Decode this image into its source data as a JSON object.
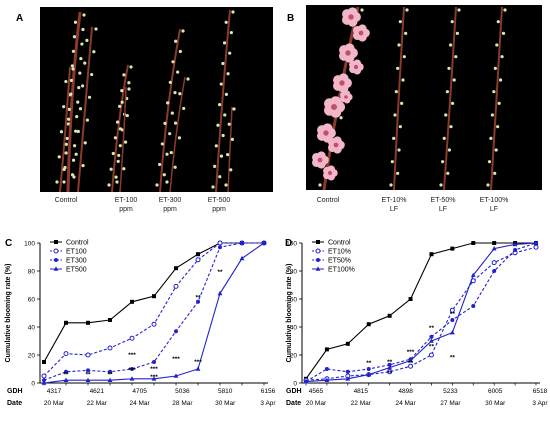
{
  "panels": {
    "a_label": "A",
    "b_label": "B",
    "c_label": "C",
    "d_label": "D"
  },
  "photo_a": {
    "captions": [
      "Control",
      "ET-100\nppm",
      "ET-300\nppm",
      "ET-500\nppm"
    ]
  },
  "photo_b": {
    "captions": [
      "Control",
      "ET-10%\nLF",
      "ET-50%\nLF",
      "ET-100%\nLF"
    ]
  },
  "colors": {
    "control": "#000000",
    "treat": "#2222cc",
    "photo_bg": "#000000",
    "branch": "#8b3a2a",
    "bud": "#d8e8b0",
    "blossom": "#f3b6c8"
  },
  "chart_data": [
    {
      "type": "line",
      "panel": "C",
      "ylabel": "Cumulative blooming rate (%)",
      "ylim": [
        0,
        100
      ],
      "yticks": [
        0,
        20,
        40,
        60,
        80,
        100
      ],
      "gdh_label": "GDH",
      "date_label": "Date",
      "gdh_ticks": [
        "4317",
        "4621",
        "4705",
        "5036",
        "5810",
        "6156"
      ],
      "date_ticks": [
        "20 Mar",
        "22 Mar",
        "24 Mar",
        "28 Mar",
        "30 Mar",
        "3 Apr"
      ],
      "legend_position": "top-left",
      "series": [
        {
          "name": "Control",
          "marker": "square-filled",
          "dash": "solid",
          "values": [
            15,
            43,
            43,
            45,
            58,
            62,
            82,
            92,
            100,
            100,
            100
          ]
        },
        {
          "name": "ET100",
          "marker": "circle-open",
          "dash": "dashed",
          "values": [
            5,
            21,
            20,
            25,
            32,
            42,
            69,
            88,
            100,
            100,
            100
          ]
        },
        {
          "name": "ET300",
          "marker": "circle-filled",
          "dash": "dashed",
          "values": [
            2,
            8,
            9,
            8,
            10,
            15,
            37,
            58,
            97,
            100,
            100
          ]
        },
        {
          "name": "ET500",
          "marker": "triangle-filled",
          "dash": "solid",
          "values": [
            0,
            2,
            2,
            2,
            3,
            3,
            5,
            10,
            64,
            89,
            100
          ]
        }
      ],
      "annotations": [
        {
          "x_index": 1,
          "y": 4,
          "text": "**"
        },
        {
          "x_index": 2,
          "y": 4,
          "text": "**"
        },
        {
          "x_index": 3,
          "y": 4,
          "text": "**"
        },
        {
          "x_index": 4,
          "y": 18,
          "text": "***"
        },
        {
          "x_index": 4,
          "y": 7,
          "text": "***"
        },
        {
          "x_index": 5,
          "y": 8,
          "text": "***"
        },
        {
          "x_index": 5,
          "y": 2,
          "text": "***"
        },
        {
          "x_index": 6,
          "y": 15,
          "text": "***"
        },
        {
          "x_index": 7,
          "y": 13,
          "text": "***"
        },
        {
          "x_index": 7,
          "y": 59,
          "text": "**"
        },
        {
          "x_index": 8,
          "y": 77,
          "text": "**"
        }
      ]
    },
    {
      "type": "line",
      "panel": "D",
      "ylabel": "Cumulative blooming rate (%)",
      "ylim": [
        0,
        100
      ],
      "yticks": [
        0,
        20,
        40,
        60,
        80,
        100
      ],
      "gdh_label": "GDH",
      "date_label": "Date",
      "gdh_ticks": [
        "4565",
        "4815",
        "4898",
        "5233",
        "6005",
        "6518"
      ],
      "date_ticks": [
        "20 Mar",
        "22 Mar",
        "24 Mar",
        "27 Mar",
        "30 Mar",
        "3 Apr"
      ],
      "legend_position": "top-left",
      "series": [
        {
          "name": "Control",
          "marker": "square-filled",
          "dash": "solid",
          "values": [
            3,
            24,
            28,
            42,
            48,
            60,
            92,
            96,
            100,
            100,
            100,
            100
          ]
        },
        {
          "name": "ET10%",
          "marker": "circle-open",
          "dash": "dashed",
          "values": [
            2,
            3,
            5,
            6,
            8,
            12,
            20,
            52,
            73,
            86,
            93,
            97
          ]
        },
        {
          "name": "ET50%",
          "marker": "circle-filled",
          "dash": "dashed",
          "values": [
            1,
            10,
            8,
            10,
            13,
            17,
            33,
            45,
            55,
            80,
            95,
            100
          ]
        },
        {
          "name": "ET100%",
          "marker": "triangle-filled",
          "dash": "solid",
          "values": [
            1,
            2,
            3,
            6,
            11,
            16,
            30,
            36,
            77,
            96,
            99,
            100
          ]
        }
      ],
      "annotations": [
        {
          "x_index": 3,
          "y": 12,
          "text": "**"
        },
        {
          "x_index": 4,
          "y": 13,
          "text": "**"
        },
        {
          "x_index": 4,
          "y": 5,
          "text": "**"
        },
        {
          "x_index": 5,
          "y": 20,
          "text": "***"
        },
        {
          "x_index": 5,
          "y": 12,
          "text": "**"
        },
        {
          "x_index": 6,
          "y": 37,
          "text": "**"
        },
        {
          "x_index": 6,
          "y": 24,
          "text": "**"
        },
        {
          "x_index": 7,
          "y": 47,
          "text": "**"
        },
        {
          "x_index": 7,
          "y": 16,
          "text": "**"
        }
      ]
    }
  ]
}
